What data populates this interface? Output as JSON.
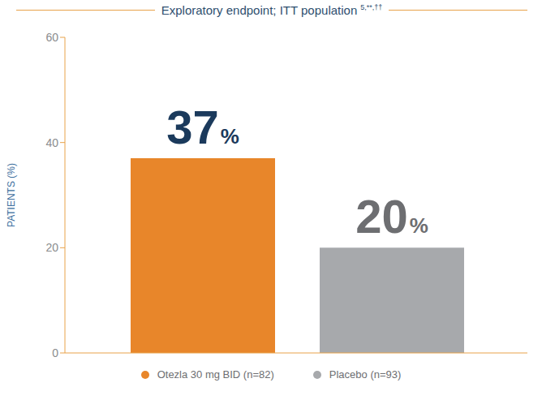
{
  "chart_data": {
    "type": "bar",
    "title": "Exploratory endpoint; ITT population 5,**,††",
    "y_label": "PATIENTS (%)",
    "categories": [
      "Otezla 30 mg BID (n=82)",
      "Placebo (n=93)"
    ],
    "values": [
      37,
      20
    ],
    "value_labels": [
      "37%",
      "20%"
    ],
    "colors": [
      "#e8862a",
      "#a7a9ac"
    ],
    "ylim": [
      0,
      60
    ],
    "yticks": [
      0,
      20,
      40,
      60
    ],
    "grid": false,
    "legend": "bottom",
    "data_labels": true,
    "tick_labels": "y"
  }
}
